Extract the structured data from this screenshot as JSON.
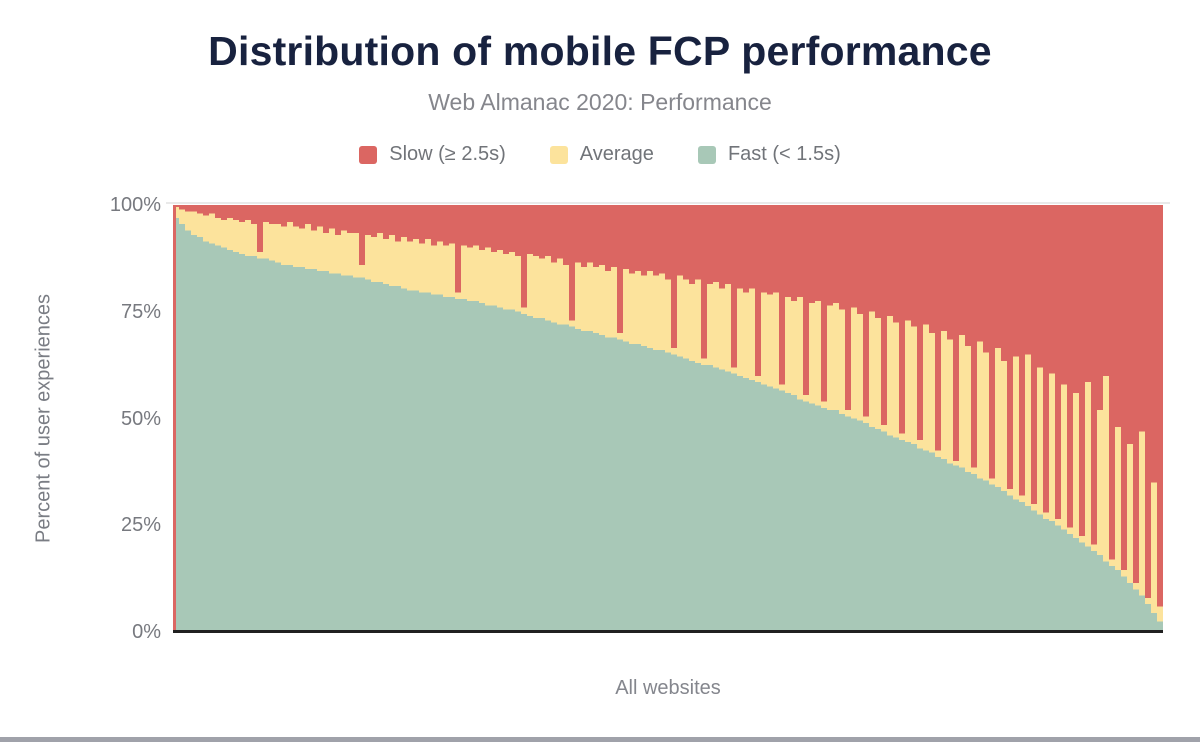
{
  "header": {
    "title": "Distribution of mobile FCP performance",
    "subtitle": "Web Almanac 2020: Performance"
  },
  "legend": {
    "items": [
      {
        "label": "Slow (≥ 2.5s)",
        "color": "#db6662"
      },
      {
        "label": "Average",
        "color": "#fce39c"
      },
      {
        "label": "Fast (< 1.5s)",
        "color": "#a8c8b7"
      }
    ]
  },
  "axes": {
    "y_title": "Percent of user experiences",
    "y_tick_labels": [
      "100%",
      "75%",
      "50%",
      "25%",
      "0%"
    ],
    "x_title": "All websites"
  },
  "decorations": {
    "left_axis_line_color": "#db6662",
    "bottom_axis_line_color": "#202020",
    "gridline_color": "#e9e9e9",
    "bottom_strip_color": "#a0a2aa",
    "title_color": "#18223f",
    "subtitle_color": "#85868c",
    "axis_text_color": "#77797f"
  },
  "chart_data": {
    "type": "bar",
    "variant": "100%-stacked-columns",
    "title": "Distribution of mobile FCP performance",
    "subtitle": "Web Almanac 2020: Performance",
    "xlabel": "All websites",
    "ylabel": "Percent of user experiences",
    "ylim": [
      0,
      100
    ],
    "yticks_pct": [
      0,
      25,
      50,
      75,
      100
    ],
    "grid": "100%-line-only",
    "legend_position": "top-center",
    "x_description": "Individual websites sorted by share of fast FCP experiences, descending (downsampled to 165 columns)",
    "series": [
      {
        "name": "Fast (< 1.5s)",
        "color": "#a8c8b7",
        "position": "bottom"
      },
      {
        "name": "Average",
        "color": "#fce39c",
        "position": "middle"
      },
      {
        "name": "Slow (≥ 2.5s)",
        "color": "#db6662",
        "position": "top"
      }
    ],
    "note": "Per column: average_pct = fast_plus_average_pct - fast_pct; slow_pct = 100 - fast_plus_average_pct",
    "fast_pct": [
      97,
      95.5,
      94,
      93,
      92.5,
      91.5,
      91,
      90.5,
      90,
      89.5,
      89,
      88.5,
      88,
      88,
      87.5,
      87.5,
      87,
      86.5,
      86,
      86,
      85.5,
      85.5,
      85,
      85,
      84.5,
      84.5,
      84,
      84,
      83.5,
      83.5,
      83,
      83,
      82.5,
      82,
      82,
      81.5,
      81,
      81,
      80.5,
      80,
      80,
      79.5,
      79.5,
      79,
      79,
      78.5,
      78.5,
      78,
      78,
      77.5,
      77.5,
      77,
      76.5,
      76.5,
      76,
      75.5,
      75.5,
      75,
      74.5,
      74,
      73.5,
      73.5,
      73,
      72.5,
      72,
      72,
      71.5,
      71,
      70.5,
      70.5,
      70,
      69.5,
      69,
      69,
      68.5,
      68,
      67.5,
      67.5,
      67,
      66.5,
      66,
      66,
      65.5,
      65,
      64.5,
      64,
      63.5,
      63,
      62.5,
      62.5,
      62,
      61.5,
      61,
      60.5,
      60,
      59.5,
      59,
      58.5,
      58,
      57.5,
      57,
      56.5,
      56,
      55.5,
      54.5,
      54,
      53.5,
      53,
      52.5,
      52,
      52,
      51,
      50.5,
      50,
      49.5,
      49,
      48,
      47.5,
      47,
      46,
      45.5,
      45,
      44.5,
      44,
      43,
      42.5,
      42,
      41,
      40.5,
      39.5,
      39,
      38.5,
      37.5,
      37,
      36,
      35.5,
      34.5,
      34,
      33,
      32,
      31,
      30.5,
      29.5,
      28.5,
      27.5,
      26.5,
      26,
      25,
      24,
      23,
      22,
      21,
      20,
      19,
      18,
      16.5,
      15.5,
      14.5,
      13,
      11.5,
      10,
      8.5,
      6.5,
      4.5,
      2.5
    ],
    "fast_plus_average_pct": [
      99.5,
      99,
      98.5,
      98.5,
      98,
      97.5,
      98,
      97,
      96.5,
      97,
      96.5,
      96,
      96.5,
      95.5,
      89,
      96,
      95.5,
      95.5,
      95,
      96,
      95,
      94.5,
      95.5,
      94,
      95,
      93.5,
      94.5,
      93,
      94,
      93.5,
      93.5,
      86,
      93,
      92.5,
      93.5,
      92,
      93,
      91.5,
      92.5,
      91.5,
      92,
      91,
      92,
      90.5,
      91.5,
      90.5,
      91,
      79.5,
      90.5,
      90,
      90.5,
      89.5,
      90,
      89,
      89.5,
      88.5,
      89,
      88,
      76,
      88.5,
      88,
      87.5,
      88,
      86.5,
      87.5,
      86,
      73,
      86.5,
      85.5,
      86.5,
      85.5,
      86,
      84.5,
      85.5,
      70,
      85,
      84,
      84.5,
      83.5,
      84.5,
      83.5,
      84,
      82.5,
      66.5,
      83.5,
      82.5,
      81.5,
      82.5,
      64,
      81.5,
      82,
      80.5,
      81.5,
      62,
      80.5,
      79.5,
      80.5,
      60,
      79.5,
      79,
      79.5,
      58,
      78.5,
      77.5,
      78.5,
      55.5,
      77,
      77.5,
      54,
      76.5,
      77,
      75.5,
      52,
      76,
      74.5,
      50.5,
      75,
      73.5,
      48.5,
      74,
      72.5,
      46.5,
      73,
      71.5,
      45,
      72,
      70,
      42.5,
      70.5,
      68.5,
      40,
      69.5,
      67,
      38.5,
      68,
      65.5,
      36,
      66.5,
      63.5,
      33.5,
      64.5,
      32,
      65,
      30,
      62,
      28,
      60.5,
      26.5,
      58,
      24.5,
      56,
      22.5,
      58.5,
      20.5,
      52,
      60,
      17,
      48,
      14.5,
      44,
      11.5,
      47,
      8,
      35,
      6
    ]
  }
}
